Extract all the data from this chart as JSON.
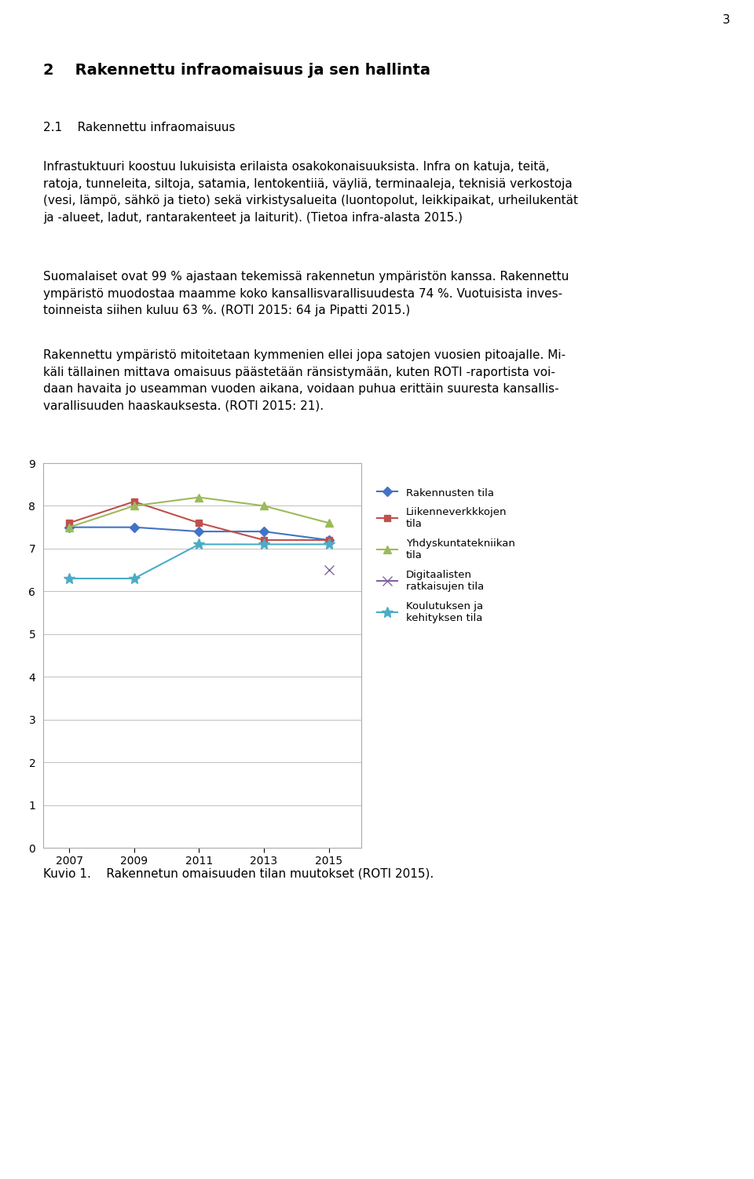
{
  "page_number": "3",
  "heading_bold": "2    Rakennettu infraomaisuus ja sen hallinta",
  "subheading": "2.1    Rakennettu infraomaisuus",
  "para1_line1": "Infrastuktuuri koostuu lukuisista erilaista osakokonaisuuksista. Infra on katuja, teitä,",
  "para1_line2": "ratoja, tunneleita, siltoja, satamia, lentokentiiä, väyliä, terminaaleja, teknisiä verkostoja",
  "para1_line3": "(vesi, lämpö, sähkö ja tieto) sekä virkistysalueita (luontopolut, leikkipaikat, urheilukentät",
  "para1_line4": "ja -alueet, ladut, rantarakenteet ja laiturit). (Tietoa infra-alasta 2015.)",
  "para2_line1": "Suomalaiset ovat 99 % ajastaan tekemissä rakennetun ympäristön kanssa. Rakennettu",
  "para2_line2": "ympäristö muodostaa maamme koko kansallisvarallisuudesta 74 %. Vuotuisista inves-",
  "para2_line3": "toinneista siihen kuluu 63 %. (ROTI 2015: 64 ja Pipatti 2015.)",
  "para3_line1": "Rakennettu ympäristö mitoitetaan kymmenien ellei jopa satojen vuosien pitoajalle. Mi-",
  "para3_line2": "käli tällainen mittava omaisuus päästetään ränsistymään, kuten ROTI -raportista voi-",
  "para3_line3": "daan havaita jo useamman vuoden aikana, voidaan puhua erittäin suuresta kansallis-",
  "para3_line4": "varallisuuden haaskauksesta. (ROTI 2015: 21).",
  "caption": "Kuvio 1.    Rakennetun omaisuuden tilan muutokset (ROTI 2015).",
  "series": [
    {
      "label": "Rakennusten tila",
      "color": "#4472C4",
      "marker": "D",
      "markersize": 6,
      "linewidth": 1.5,
      "values": [
        7.5,
        7.5,
        7.4,
        7.4,
        7.2
      ],
      "x_values": [
        2007,
        2009,
        2011,
        2013,
        2015
      ]
    },
    {
      "label": "Liikenneverkkkojen\ntila",
      "color": "#C0504D",
      "marker": "s",
      "markersize": 6,
      "linewidth": 1.5,
      "values": [
        7.6,
        8.1,
        7.6,
        7.2,
        7.2
      ],
      "x_values": [
        2007,
        2009,
        2011,
        2013,
        2015
      ]
    },
    {
      "label": "Yhdyskuntatekniikan\ntila",
      "color": "#9BBB59",
      "marker": "^",
      "markersize": 7,
      "linewidth": 1.5,
      "values": [
        7.5,
        8.0,
        8.2,
        8.0,
        7.6
      ],
      "x_values": [
        2007,
        2009,
        2011,
        2013,
        2015
      ]
    },
    {
      "label": "Digitaalisten\nratkaisujen tila",
      "color": "#8064A2",
      "marker": "x",
      "markersize": 9,
      "linewidth": 1.5,
      "values": [
        6.5
      ],
      "x_values": [
        2015
      ]
    },
    {
      "label": "Koulutuksen ja\nkehityksen tila",
      "color": "#4BACC6",
      "marker": "*",
      "markersize": 10,
      "linewidth": 1.5,
      "values": [
        6.3,
        6.3,
        7.1,
        7.1,
        7.1
      ],
      "x_values": [
        2007,
        2009,
        2011,
        2013,
        2015
      ]
    }
  ],
  "ylim": [
    0,
    9
  ],
  "yticks": [
    0,
    1,
    2,
    3,
    4,
    5,
    6,
    7,
    8,
    9
  ],
  "xticks": [
    2007,
    2009,
    2011,
    2013,
    2015
  ],
  "background_color": "#FFFFFF",
  "grid_color": "#C0C0C0",
  "border_color": "#AAAAAA"
}
